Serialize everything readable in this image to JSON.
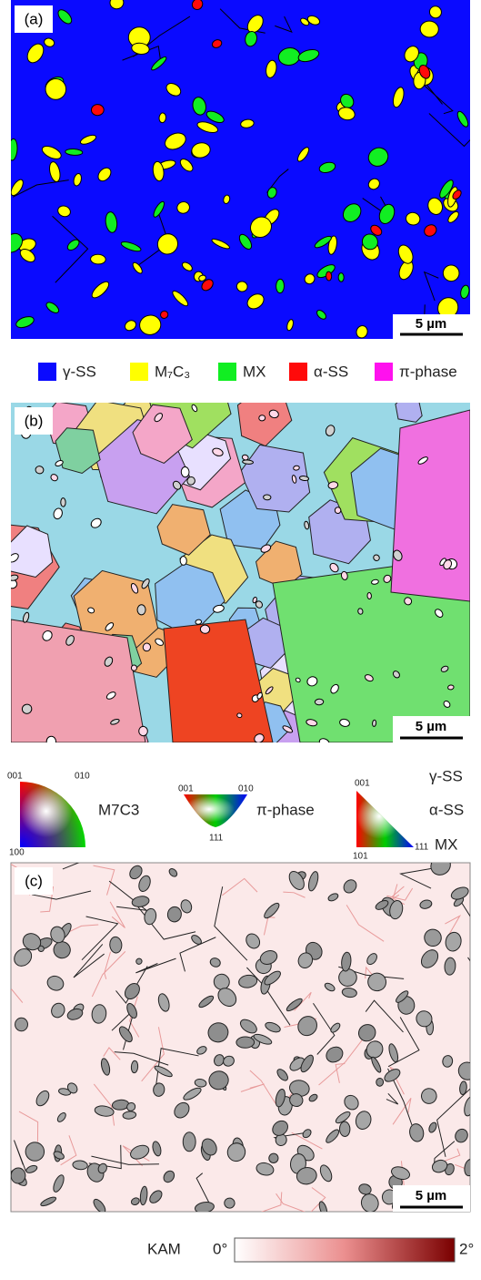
{
  "panel_a": {
    "label": "(a)",
    "scale_bar": "5 µm"
  },
  "phase_legend": [
    {
      "name": "γ-SS",
      "color": "#0a0aff"
    },
    {
      "name": "M₇C₃",
      "color": "#ffff00"
    },
    {
      "name": "MX",
      "color": "#11ee22"
    },
    {
      "name": "α-SS",
      "color": "#ff0a0a"
    },
    {
      "name": "π-phase",
      "color": "#ff11ee"
    }
  ],
  "panel_b": {
    "label": "(b)",
    "scale_bar": "5 µm"
  },
  "ipf_keys": {
    "m7c3": {
      "corner_top_left": "001",
      "corner_top_right": "010",
      "corner_bottom": "100",
      "name": "M7C3"
    },
    "pi_phase": {
      "corner_left": "001",
      "corner_right": "010",
      "corner_bottom": "111",
      "name": "π-phase"
    },
    "cubic": {
      "corner_top": "001",
      "corner_bottom_left": "101",
      "corner_bottom_right": "111",
      "phases": [
        "γ-SS",
        "α-SS",
        "MX"
      ]
    }
  },
  "panel_c": {
    "label": "(c)",
    "scale_bar": "5 µm"
  },
  "kam_legend": {
    "title": "KAM",
    "min_label": "0°",
    "max_label": "2°"
  }
}
